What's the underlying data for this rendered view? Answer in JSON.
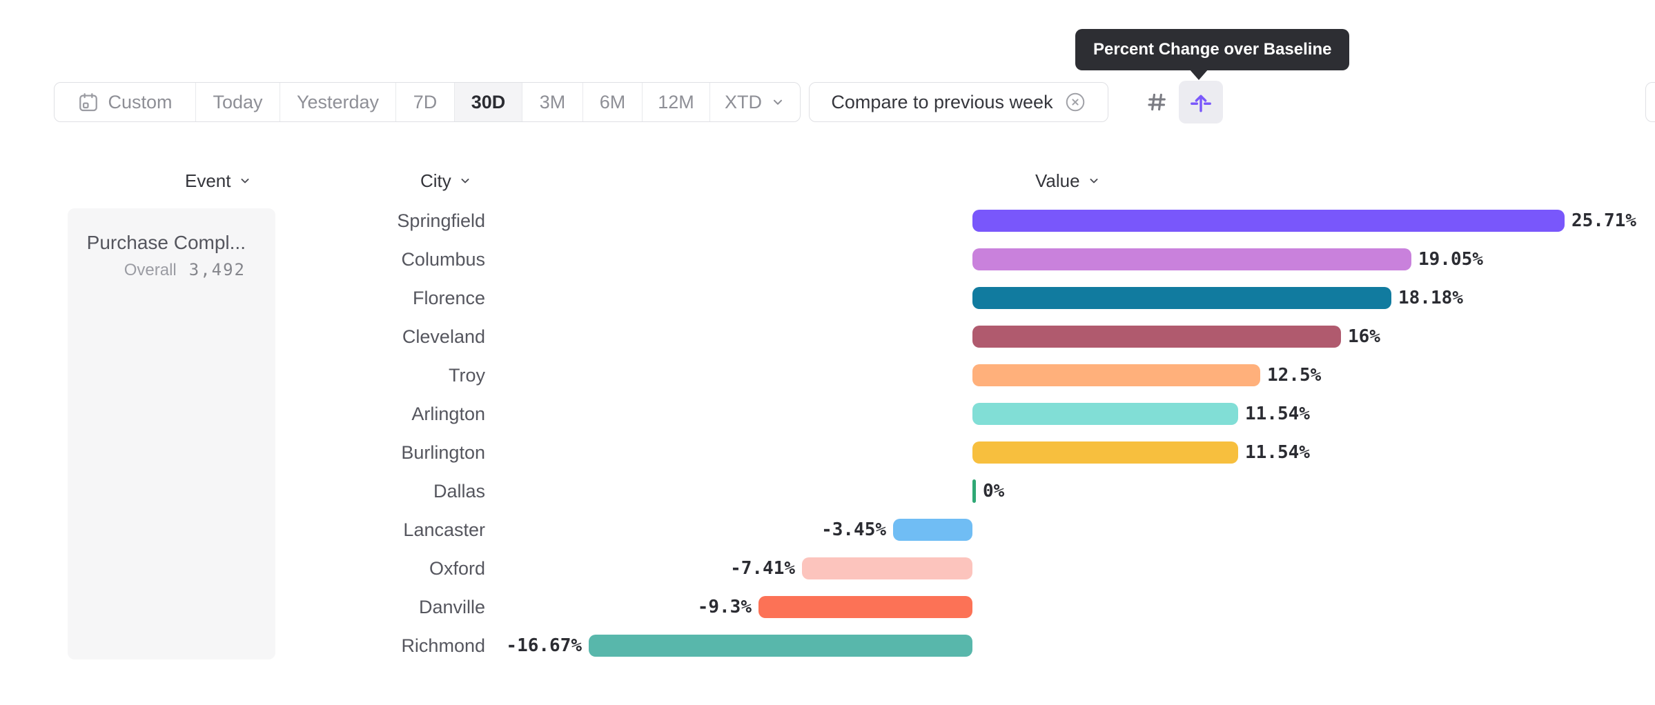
{
  "tooltip": {
    "text": "Percent Change over Baseline"
  },
  "toolbar": {
    "date_ranges": [
      {
        "label": "Custom",
        "icon": "calendar-icon",
        "selected": false
      },
      {
        "label": "Today",
        "selected": false
      },
      {
        "label": "Yesterday",
        "selected": false
      },
      {
        "label": "7D",
        "selected": false
      },
      {
        "label": "30D",
        "selected": true
      },
      {
        "label": "3M",
        "selected": false
      },
      {
        "label": "6M",
        "selected": false
      },
      {
        "label": "12M",
        "selected": false
      },
      {
        "label": "XTD",
        "selected": false,
        "has_chevron": true
      }
    ],
    "compare": {
      "label": "Compare to previous week",
      "remove_icon": "x-circle-icon"
    },
    "format_toggle": {
      "buttons": [
        {
          "name": "number-format",
          "icon": "hash-icon",
          "selected": false
        },
        {
          "name": "percent-change-over-baseline-format",
          "icon": "baseline-arrow-icon",
          "selected": true
        }
      ]
    }
  },
  "columns": {
    "event": "Event",
    "city": "City",
    "value": "Value"
  },
  "event_panel": {
    "name": "Purchase Compl...",
    "metric_label": "Overall",
    "metric_value": "3,492"
  },
  "chart_data": {
    "type": "bar",
    "orientation": "horizontal",
    "title": "Percent Change over Baseline",
    "unit": "%",
    "baseline": 0,
    "axes_hidden": true,
    "approx_xlim": [
      -20,
      29
    ],
    "categories": [
      "Springfield",
      "Columbus",
      "Florence",
      "Cleveland",
      "Troy",
      "Arlington",
      "Burlington",
      "Dallas",
      "Lancaster",
      "Oxford",
      "Danville",
      "Richmond"
    ],
    "values": [
      25.71,
      19.05,
      18.18,
      16,
      12.5,
      11.54,
      11.54,
      0,
      -3.45,
      -7.41,
      -9.3,
      -16.67
    ],
    "value_labels": [
      "25.71%",
      "19.05%",
      "18.18%",
      "16%",
      "12.5%",
      "11.54%",
      "11.54%",
      "0%",
      "-3.45%",
      "-7.41%",
      "-9.3%",
      "-16.67%"
    ],
    "bar_colors": [
      "#7957FB",
      "#C981DC",
      "#117B9F",
      "#B05A6E",
      "#FFB07B",
      "#81DED6",
      "#F7BF3E",
      "#2FA875",
      "#70BDF4",
      "#FCC4BD",
      "#FC7256",
      "#58B7AB"
    ],
    "positive_label_position": "right-of-bar",
    "negative_label_position": "left-of-bar"
  },
  "colors": {
    "accent_purple": "#7957FB",
    "tooltip_bg": "#2D2E33",
    "selected_segment_bg": "#F4F4F6",
    "selected_format_bg": "#ECECF1",
    "border": "#DFE0E4",
    "text_dark": "#2B2C32",
    "text_gray": "#8E8F96",
    "row_label_gray": "#55565E",
    "zero_tick_green": "#2FA875",
    "panel_bg": "#F6F6F7"
  }
}
